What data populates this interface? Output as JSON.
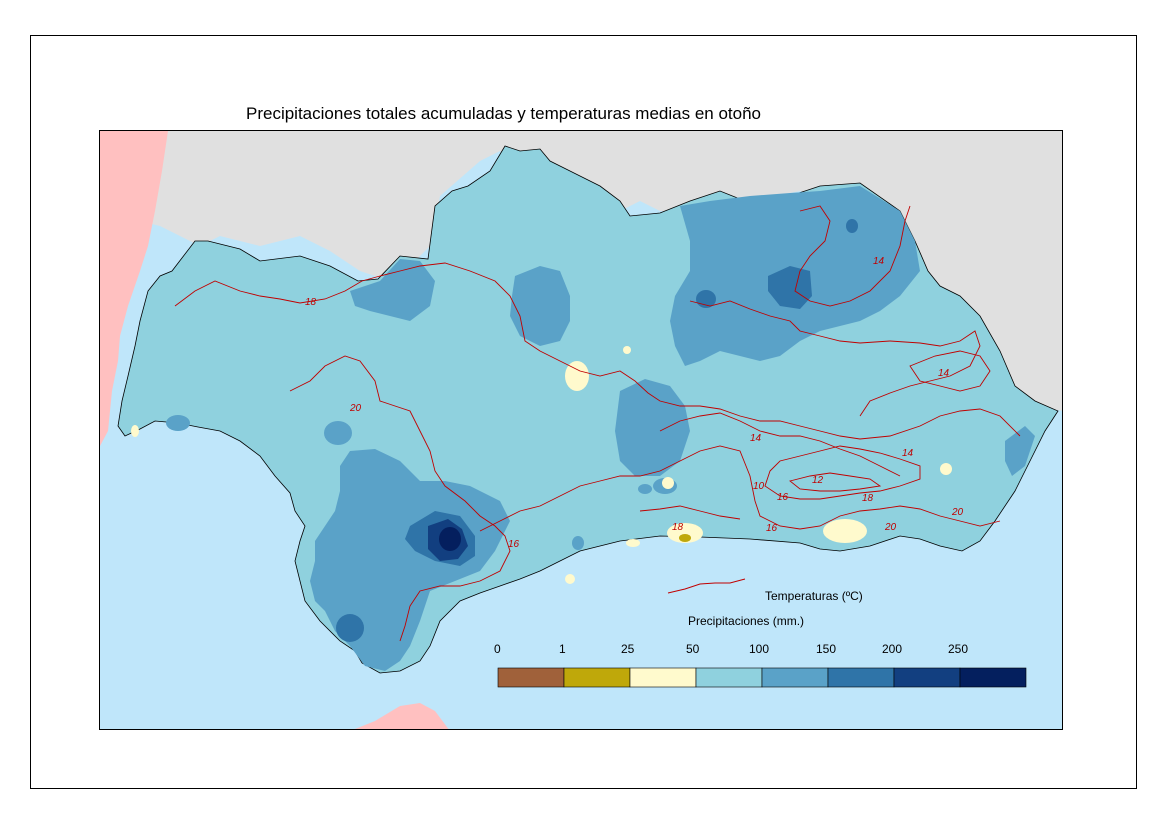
{
  "title": "Precipitaciones totales acumuladas y temperaturas medias en otoño",
  "legend": {
    "temperature_label": "Temperaturas (ºC)",
    "precip_label": "Precipitaciones (mm.)",
    "breaks": [
      "0",
      "1",
      "25",
      "50",
      "100",
      "150",
      "200",
      "250"
    ],
    "classes": [
      {
        "color": "#a0613a"
      },
      {
        "color": "#bfa80a"
      },
      {
        "color": "#fffacd"
      },
      {
        "color": "#8fd1de"
      },
      {
        "color": "#5aa2c8"
      },
      {
        "color": "#2f74a8"
      },
      {
        "color": "#123f80"
      },
      {
        "color": "#041f5e"
      }
    ]
  },
  "contour_labels": [
    "18",
    "20",
    "14",
    "14",
    "14",
    "14",
    "10",
    "12",
    "16",
    "18",
    "16",
    "18",
    "20",
    "20",
    "16"
  ],
  "colors": {
    "sea": "#bfe6fa",
    "land_outside": "#e0e0e0",
    "portugal": "#ffc0c0",
    "isotherm": "#c00000",
    "base_precip": "#8fd1de"
  }
}
